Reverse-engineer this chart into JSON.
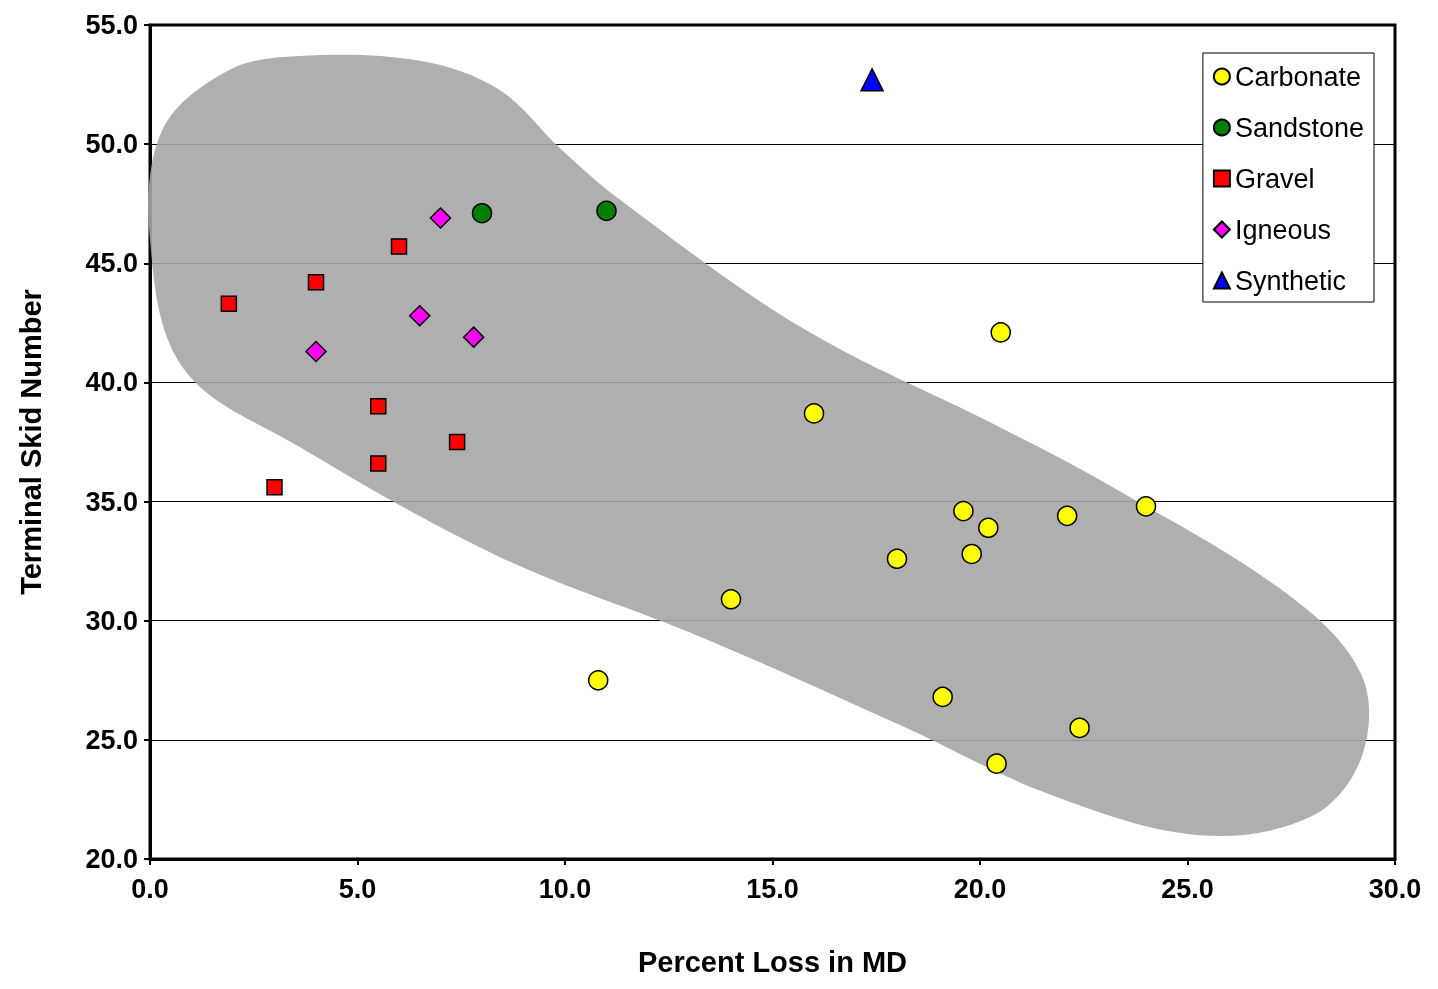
{
  "chart_data": {
    "type": "scatter",
    "xlabel": "Percent Loss in MD",
    "ylabel": "Terminal Skid Number",
    "xlim": [
      0,
      30
    ],
    "ylim": [
      20,
      55
    ],
    "xticks": [
      {
        "value": 0,
        "label": "0.0"
      },
      {
        "value": 5,
        "label": "5.0"
      },
      {
        "value": 10,
        "label": "10.0"
      },
      {
        "value": 15,
        "label": "15.0"
      },
      {
        "value": 20,
        "label": "20.0"
      },
      {
        "value": 25,
        "label": "25.0"
      },
      {
        "value": 30,
        "label": "30.0"
      }
    ],
    "yticks": [
      {
        "value": 20,
        "label": "20.0"
      },
      {
        "value": 25,
        "label": "25.0"
      },
      {
        "value": 30,
        "label": "30.0"
      },
      {
        "value": 35,
        "label": "35.0"
      },
      {
        "value": 40,
        "label": "40.0"
      },
      {
        "value": 45,
        "label": "45.0"
      },
      {
        "value": 50,
        "label": "50.0"
      },
      {
        "value": 55,
        "label": "55.0"
      }
    ],
    "grid": "y",
    "legend": "top right",
    "series": [
      {
        "type": "area",
        "color": "#a6a6a6",
        "x": [
          0.3,
          1.9,
          3.6,
          6.5,
          8.4,
          9.9,
          11.3,
          15.7,
          20.5,
          23.0,
          27.5,
          29.2,
          29.2,
          28.0,
          25.3,
          21.7,
          18.1,
          13.3,
          8.4,
          3.6,
          0.8,
          0.0
        ],
        "values": [
          50.6,
          53.1,
          53.7,
          53.5,
          52.3,
          49.8,
          47.7,
          42.3,
          38.1,
          35.8,
          31.0,
          27.7,
          24.3,
          21.8,
          21.0,
          22.7,
          25.6,
          29.3,
          32.7,
          37.3,
          40.6,
          46.0
        ]
      },
      {
        "name": "Carbonate",
        "color": "#ffff00",
        "marker": "circle",
        "x": [
          10.8,
          20.5,
          24.0,
          16.0,
          14.0,
          19.6,
          20.2,
          19.8,
          18.0,
          22.1,
          19.1,
          22.4,
          20.4
        ],
        "values": [
          27.5,
          42.1,
          34.8,
          38.7,
          30.9,
          34.6,
          33.9,
          32.8,
          32.6,
          34.4,
          26.8,
          25.5,
          24.0
        ]
      },
      {
        "name": "Sandstone",
        "color": "#008000",
        "marker": "circle",
        "x": [
          11.0,
          8.0
        ],
        "values": [
          47.2,
          47.1
        ]
      },
      {
        "name": "Gravel",
        "color": "#ff0000",
        "marker": "square",
        "x": [
          3.0,
          1.9,
          4.0,
          6.0,
          5.5,
          7.4,
          5.5
        ],
        "values": [
          35.6,
          43.3,
          44.2,
          45.7,
          39.0,
          37.5,
          36.6
        ]
      },
      {
        "name": "Igneous",
        "color": "#ff00ff",
        "marker": "diamond",
        "x": [
          7.0,
          6.5,
          4.0,
          7.8
        ],
        "values": [
          46.9,
          42.8,
          41.3,
          41.9
        ]
      },
      {
        "name": "Synthetic",
        "color": "#0000ff",
        "marker": "triangle",
        "x": [
          17.4
        ],
        "values": [
          52.7
        ]
      }
    ]
  }
}
